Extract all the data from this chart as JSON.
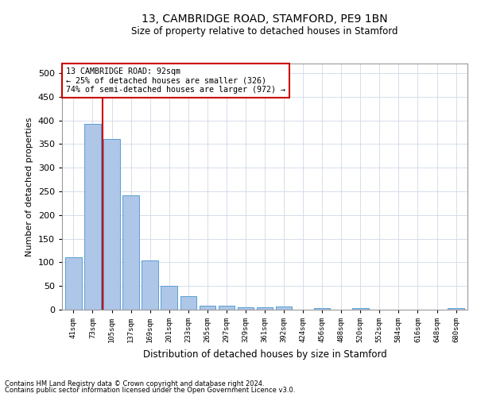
{
  "title": "13, CAMBRIDGE ROAD, STAMFORD, PE9 1BN",
  "subtitle": "Size of property relative to detached houses in Stamford",
  "xlabel": "Distribution of detached houses by size in Stamford",
  "ylabel": "Number of detached properties",
  "footnote1": "Contains HM Land Registry data © Crown copyright and database right 2024.",
  "footnote2": "Contains public sector information licensed under the Open Government Licence v3.0.",
  "categories": [
    "41sqm",
    "73sqm",
    "105sqm",
    "137sqm",
    "169sqm",
    "201sqm",
    "233sqm",
    "265sqm",
    "297sqm",
    "329sqm",
    "361sqm",
    "392sqm",
    "424sqm",
    "456sqm",
    "488sqm",
    "520sqm",
    "552sqm",
    "584sqm",
    "616sqm",
    "648sqm",
    "680sqm"
  ],
  "bar_values": [
    110,
    393,
    360,
    242,
    104,
    50,
    29,
    9,
    8,
    5,
    5,
    7,
    0,
    4,
    0,
    3,
    0,
    0,
    0,
    0,
    4
  ],
  "bar_color": "#aec6e8",
  "bar_edge_color": "#5a9fd4",
  "vline_x": 1.5,
  "vline_color": "#cc0000",
  "annotation_text": "13 CAMBRIDGE ROAD: 92sqm\n← 25% of detached houses are smaller (326)\n74% of semi-detached houses are larger (972) →",
  "annotation_box_color": "#ffffff",
  "annotation_box_edge": "#cc0000",
  "ylim": [
    0,
    520
  ],
  "yticks": [
    0,
    50,
    100,
    150,
    200,
    250,
    300,
    350,
    400,
    450,
    500
  ],
  "background_color": "#ffffff",
  "grid_color": "#d0d8e8"
}
